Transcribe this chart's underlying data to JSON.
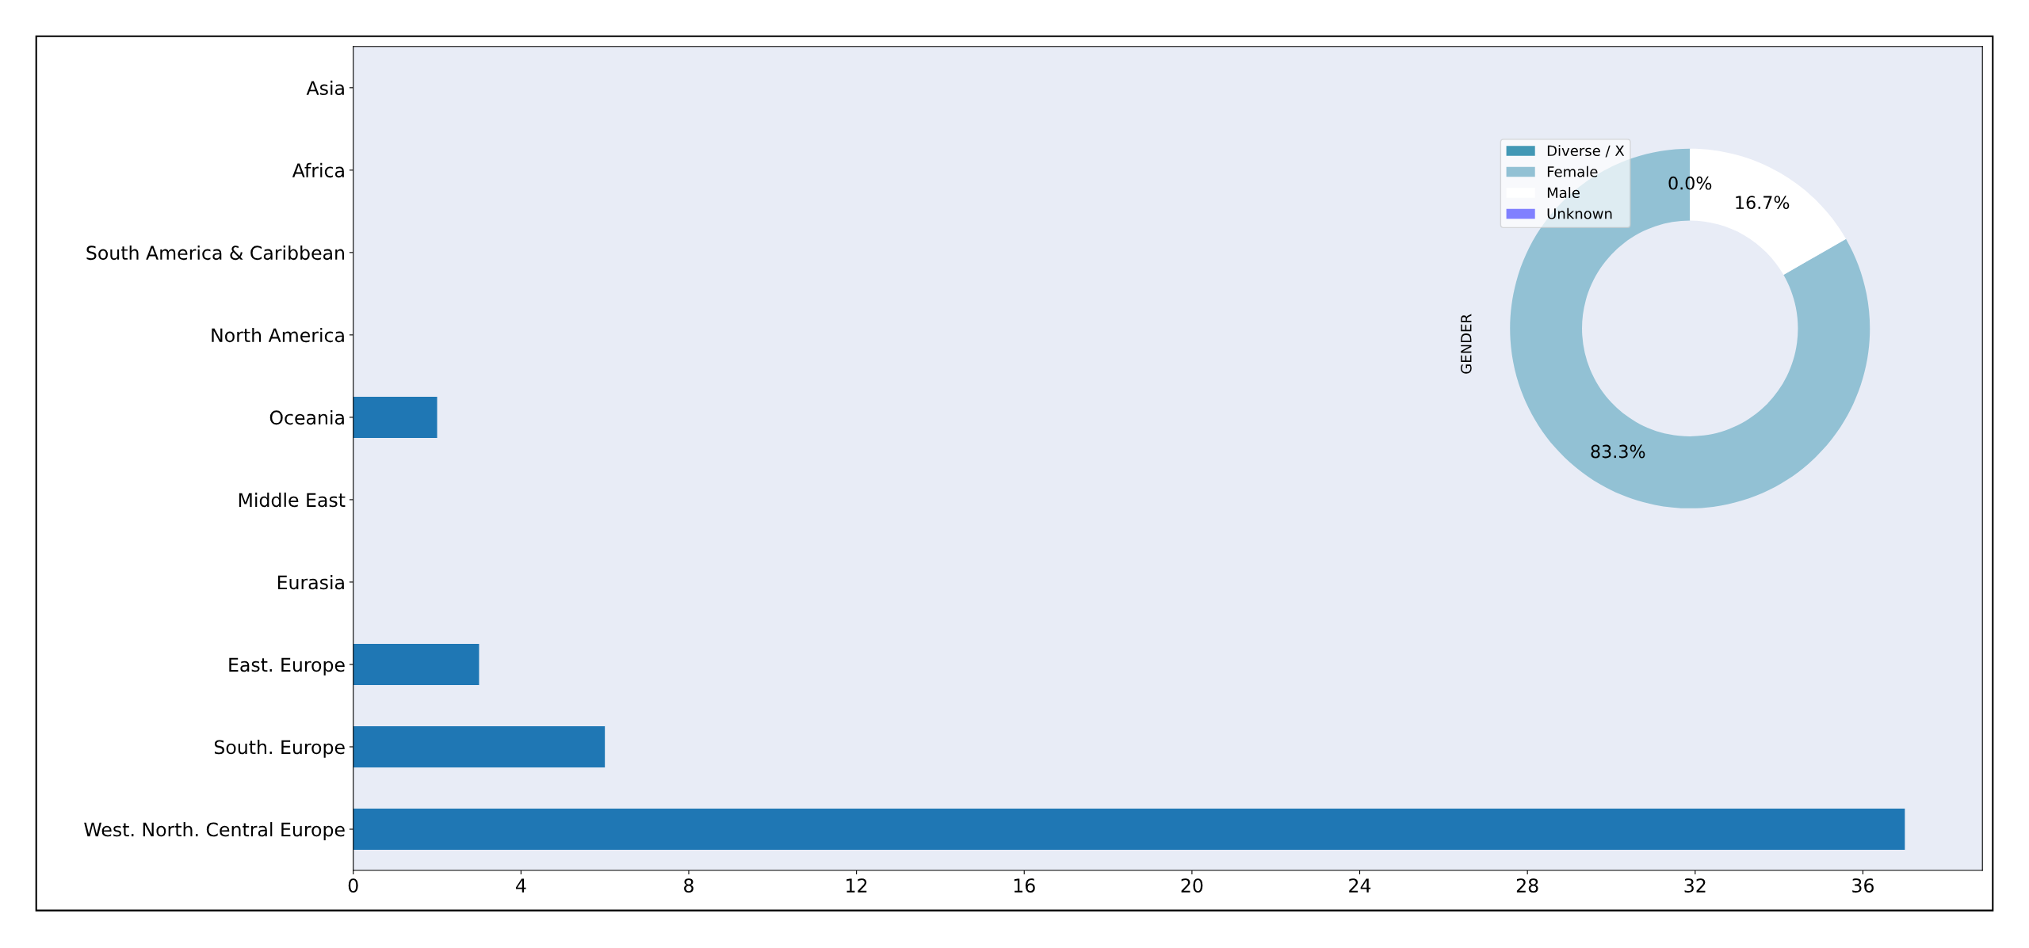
{
  "chart_data": [
    {
      "type": "bar",
      "orientation": "horizontal",
      "categories": [
        "Asia",
        "Africa",
        "South America & Caribbean",
        "North America",
        "Oceania",
        "Middle East",
        "Eurasia",
        "East. Europe",
        "South. Europe",
        "West. North. Central Europe"
      ],
      "values": [
        0,
        0,
        0,
        0,
        2,
        0,
        0,
        3,
        6,
        37
      ],
      "color": "#1f77b4",
      "xlim": [
        0,
        38.85
      ],
      "xticks": [
        0,
        4,
        8,
        12,
        16,
        20,
        24,
        28,
        32,
        36
      ],
      "grid": false,
      "legend": false
    },
    {
      "type": "donut",
      "ylabel": "GENDER",
      "categories": [
        "Diverse / X",
        "Female",
        "Male",
        "Unknown"
      ],
      "values": [
        0,
        83.3,
        16.7,
        null
      ],
      "colors": [
        "#4298b5",
        "#92c1d4",
        "#ffffff",
        "#8080ff"
      ],
      "value_labels": [
        "0.0%",
        "83.3%",
        "16.7%",
        null
      ],
      "legend": "top left"
    }
  ]
}
